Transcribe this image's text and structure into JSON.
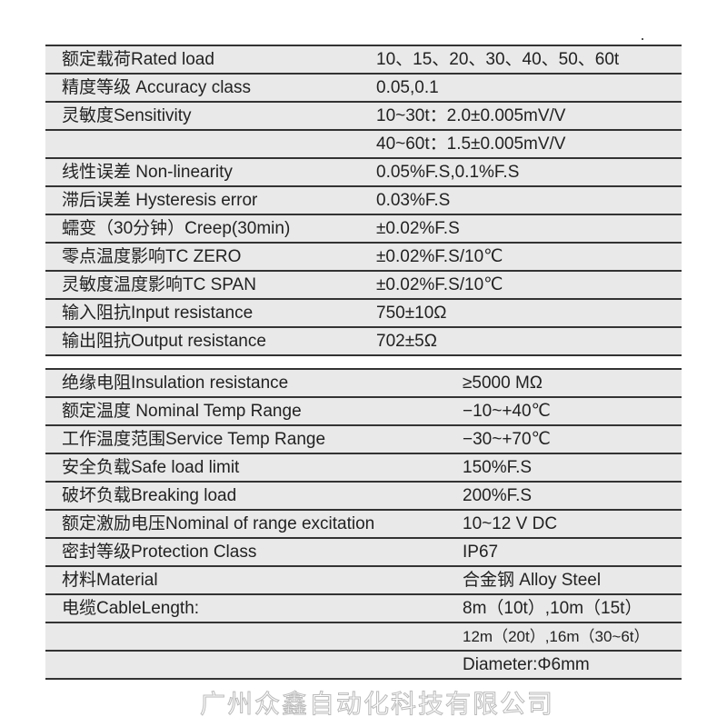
{
  "table1": [
    {
      "label": "额定载荷Rated load",
      "value": "10、15、20、30、40、50、60t"
    },
    {
      "label": "精度等级 Accuracy class",
      "value": "0.05,0.1"
    },
    {
      "label": "灵敏度Sensitivity",
      "value": "10~30t：2.0±0.005mV/V"
    },
    {
      "label": "",
      "value": "40~60t：1.5±0.005mV/V"
    },
    {
      "label": "线性误差 Non-linearity",
      "value": "0.05%F.S,0.1%F.S"
    },
    {
      "label": "滞后误差 Hysteresis error",
      "value": "0.03%F.S"
    },
    {
      "label": "蠕变（30分钟）Creep(30min)",
      "value": "±0.02%F.S"
    },
    {
      "label": "零点温度影响TC ZERO",
      "value": "±0.02%F.S/10℃"
    },
    {
      "label": "灵敏度温度影响TC SPAN",
      "value": "±0.02%F.S/10℃"
    },
    {
      "label": "输入阻抗Input resistance",
      "value": "750±10Ω"
    },
    {
      "label": "输出阻抗Output resistance",
      "value": "702±5Ω"
    }
  ],
  "table2": [
    {
      "label": "绝缘电阻Insulation resistance",
      "value": "≥5000 MΩ"
    },
    {
      "label": "额定温度 Nominal Temp Range",
      "value": "−10~+40℃"
    },
    {
      "label": "工作温度范围Service Temp Range",
      "value": "−30~+70℃"
    },
    {
      "label": "安全负载Safe load limit",
      "value": "150%F.S"
    },
    {
      "label": "破坏负载Breaking load",
      "value": "200%F.S"
    },
    {
      "label": "额定激励电压Nominal of range excitation",
      "value": "10~12 V DC"
    },
    {
      "label": "密封等级Protection Class",
      "value": "IP67"
    },
    {
      "label": "材料Material",
      "value": "合金钢 Alloy Steel"
    },
    {
      "label": "电缆CableLength:",
      "value": "8m（10t）,10m（15t）"
    },
    {
      "label": "",
      "value": "12m（20t）,16m（30~6t）"
    },
    {
      "label": "",
      "value": "Diameter:Φ6mm"
    }
  ],
  "watermark": "广州众鑫自动化科技有限公司"
}
